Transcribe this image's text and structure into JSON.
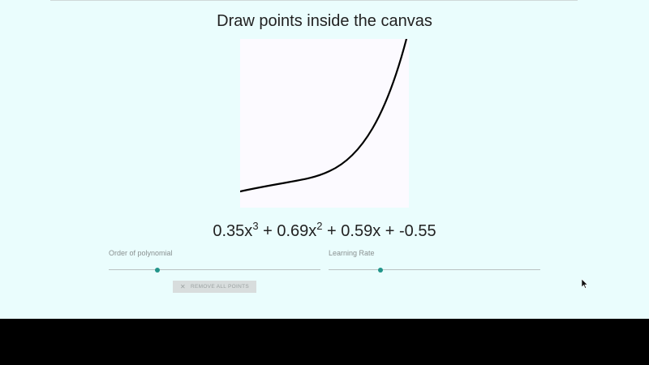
{
  "title": "Draw points inside the canvas",
  "equation": {
    "c3": "0.35x",
    "e3": "3",
    "c2": " + 0.69x",
    "e2": "2",
    "rest": " + 0.59x + -0.55"
  },
  "sliders": {
    "order": {
      "label": "Order of polynomial",
      "value_fraction": 0.23
    },
    "learning_rate": {
      "label": "Learning Rate",
      "value_fraction": 0.245
    }
  },
  "remove_button": {
    "label": "REMOVE ALL POINTS",
    "icon": "close-icon"
  },
  "colors": {
    "background": "#eafdfd",
    "canvas": "#fcfaff",
    "accent": "#22958a",
    "curve": "#000000"
  }
}
